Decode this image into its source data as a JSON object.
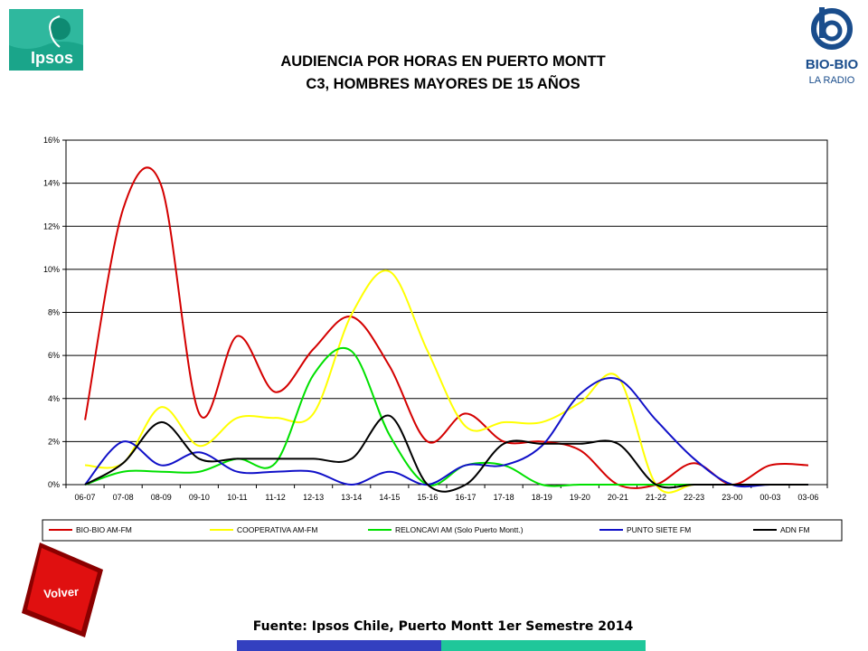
{
  "header": {
    "title_line1": "AUDIENCIA POR HORAS EN PUERTO MONTT",
    "title_line2": "C3, HOMBRES MAYORES DE 15 AÑOS"
  },
  "logos": {
    "ipsos": "Ipsos",
    "biobio_name": "BIO-BIO",
    "biobio_sub": "LA RADIO"
  },
  "nav": {
    "volver_label": "Volver"
  },
  "footer": {
    "source": "Fuente: Ipsos Chile, Puerto Montt 1er Semestre 2014",
    "bar_colors": [
      "#3340c0",
      "#1fc79a"
    ]
  },
  "chart_data": {
    "type": "line",
    "categories": [
      "06-07",
      "07-08",
      "08-09",
      "09-10",
      "10-11",
      "11-12",
      "12-13",
      "13-14",
      "14-15",
      "15-16",
      "16-17",
      "17-18",
      "18-19",
      "19-20",
      "20-21",
      "21-22",
      "22-23",
      "23-00",
      "00-03",
      "03-06"
    ],
    "ylim": [
      0,
      16
    ],
    "yticks": [
      "0%",
      "2%",
      "4%",
      "6%",
      "8%",
      "10%",
      "12%",
      "14%",
      "16%"
    ],
    "grid": true,
    "legend_position": "bottom",
    "series": [
      {
        "name": "BIO-BIO AM-FM",
        "color": "#d40000",
        "values": [
          3.0,
          12.8,
          13.9,
          3.3,
          6.9,
          4.3,
          6.3,
          7.8,
          5.5,
          2.0,
          3.3,
          2.0,
          2.0,
          1.6,
          0.0,
          0.0,
          1.0,
          0.0,
          0.9,
          0.9
        ]
      },
      {
        "name": "COOPERATIVA AM-FM",
        "color": "#ffff00",
        "values": [
          0.9,
          1.0,
          3.6,
          1.8,
          3.1,
          3.1,
          3.3,
          7.9,
          9.9,
          6.2,
          2.7,
          2.9,
          2.9,
          3.8,
          5.0,
          0.0,
          0.0,
          0.0,
          0.0,
          0.0
        ]
      },
      {
        "name": "RELONCAVI AM (Solo Puerto Montt.)",
        "color": "#00e000",
        "values": [
          0.0,
          0.6,
          0.6,
          0.6,
          1.2,
          1.0,
          5.1,
          6.2,
          2.3,
          0.0,
          0.9,
          0.9,
          0.0,
          0.0,
          0.0,
          0.0,
          0.0,
          0.0,
          0.0,
          0.0
        ]
      },
      {
        "name": "PUNTO SIETE FM",
        "color": "#1010c8",
        "values": [
          0.0,
          2.0,
          0.9,
          1.5,
          0.6,
          0.6,
          0.6,
          0.0,
          0.6,
          0.0,
          0.9,
          0.9,
          1.8,
          4.2,
          4.9,
          3.0,
          1.2,
          0.0,
          0.0,
          0.0
        ]
      },
      {
        "name": "ADN FM",
        "color": "#000000",
        "values": [
          0.0,
          1.0,
          2.9,
          1.2,
          1.2,
          1.2,
          1.2,
          1.2,
          3.2,
          0.0,
          0.0,
          1.9,
          1.9,
          1.9,
          1.9,
          0.0,
          0.0,
          0.0,
          0.0,
          0.0
        ]
      }
    ]
  }
}
